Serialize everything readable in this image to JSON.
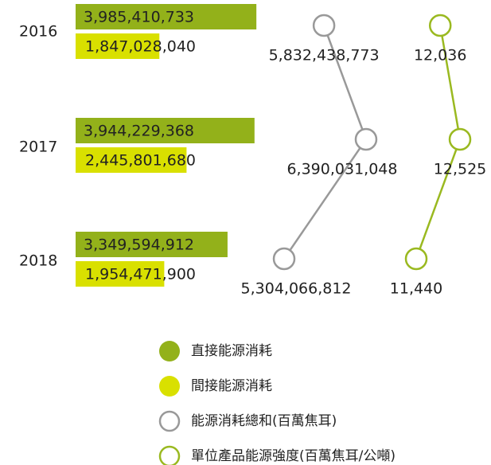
{
  "chart_data": {
    "type": "bar",
    "categories": [
      "2016",
      "2017",
      "2018"
    ],
    "series": [
      {
        "name": "直接能源消耗",
        "type": "bar",
        "color": "#93b11a",
        "values": [
          3985410733,
          3944229368,
          3349594912
        ],
        "value_labels": [
          "3,985,410,733",
          "3,944,229,368",
          "3,349,594,912"
        ]
      },
      {
        "name": "間接能源消耗",
        "type": "bar",
        "color": "#d9e000",
        "values": [
          1847028040,
          2445801680,
          1954471900
        ],
        "value_labels": [
          "1,847,028,040",
          "2,445,801,680",
          "1,954,471,900"
        ]
      },
      {
        "name": "能源消耗總和(百萬焦耳)",
        "type": "line",
        "color": "#999999",
        "values": [
          5832438773,
          6390031048,
          5304066812
        ],
        "value_labels": [
          "5,832,438,773",
          "6,390,031,048",
          "5,304,066,812"
        ]
      },
      {
        "name": "單位產品能源強度(百萬焦耳/公噸)",
        "type": "line",
        "color": "#9ab920",
        "values": [
          12036,
          12525,
          11440
        ],
        "value_labels": [
          "12,036",
          "12,525",
          "11,440"
        ]
      }
    ]
  }
}
